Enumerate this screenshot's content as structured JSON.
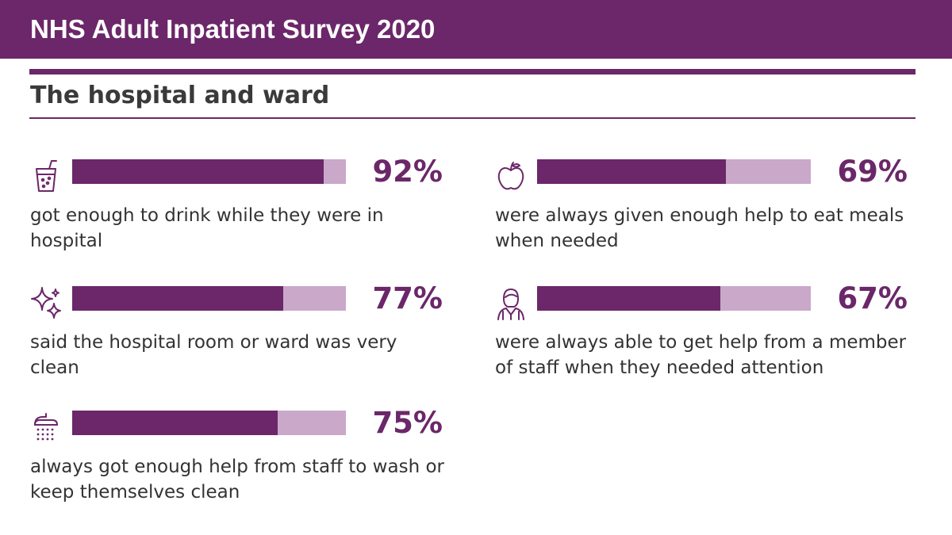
{
  "header": {
    "title": "NHS Adult Inpatient Survey 2020"
  },
  "section": {
    "title": "The hospital and ward"
  },
  "colors": {
    "primary": "#6b2769",
    "track": "#caa8ca",
    "text": "#333333"
  },
  "chart_data": {
    "type": "bar",
    "unit": "%",
    "xlim": [
      0,
      100
    ],
    "items": [
      {
        "icon": "drink-cup-icon",
        "value": 92,
        "label": "92%",
        "description": "got enough to drink while they were in hospital"
      },
      {
        "icon": "sparkle-clean-icon",
        "value": 77,
        "label": "77%",
        "description": "said the hospital room or ward was very clean"
      },
      {
        "icon": "shower-icon",
        "value": 75,
        "label": "75%",
        "description": "always got enough help from staff to wash or keep themselves clean"
      },
      {
        "icon": "apple-icon",
        "value": 69,
        "label": "69%",
        "description": "were always given enough help to eat meals when needed"
      },
      {
        "icon": "nurse-staff-icon",
        "value": 67,
        "label": "67%",
        "description": "were always able to get help from a member of staff when they needed attention"
      }
    ]
  }
}
